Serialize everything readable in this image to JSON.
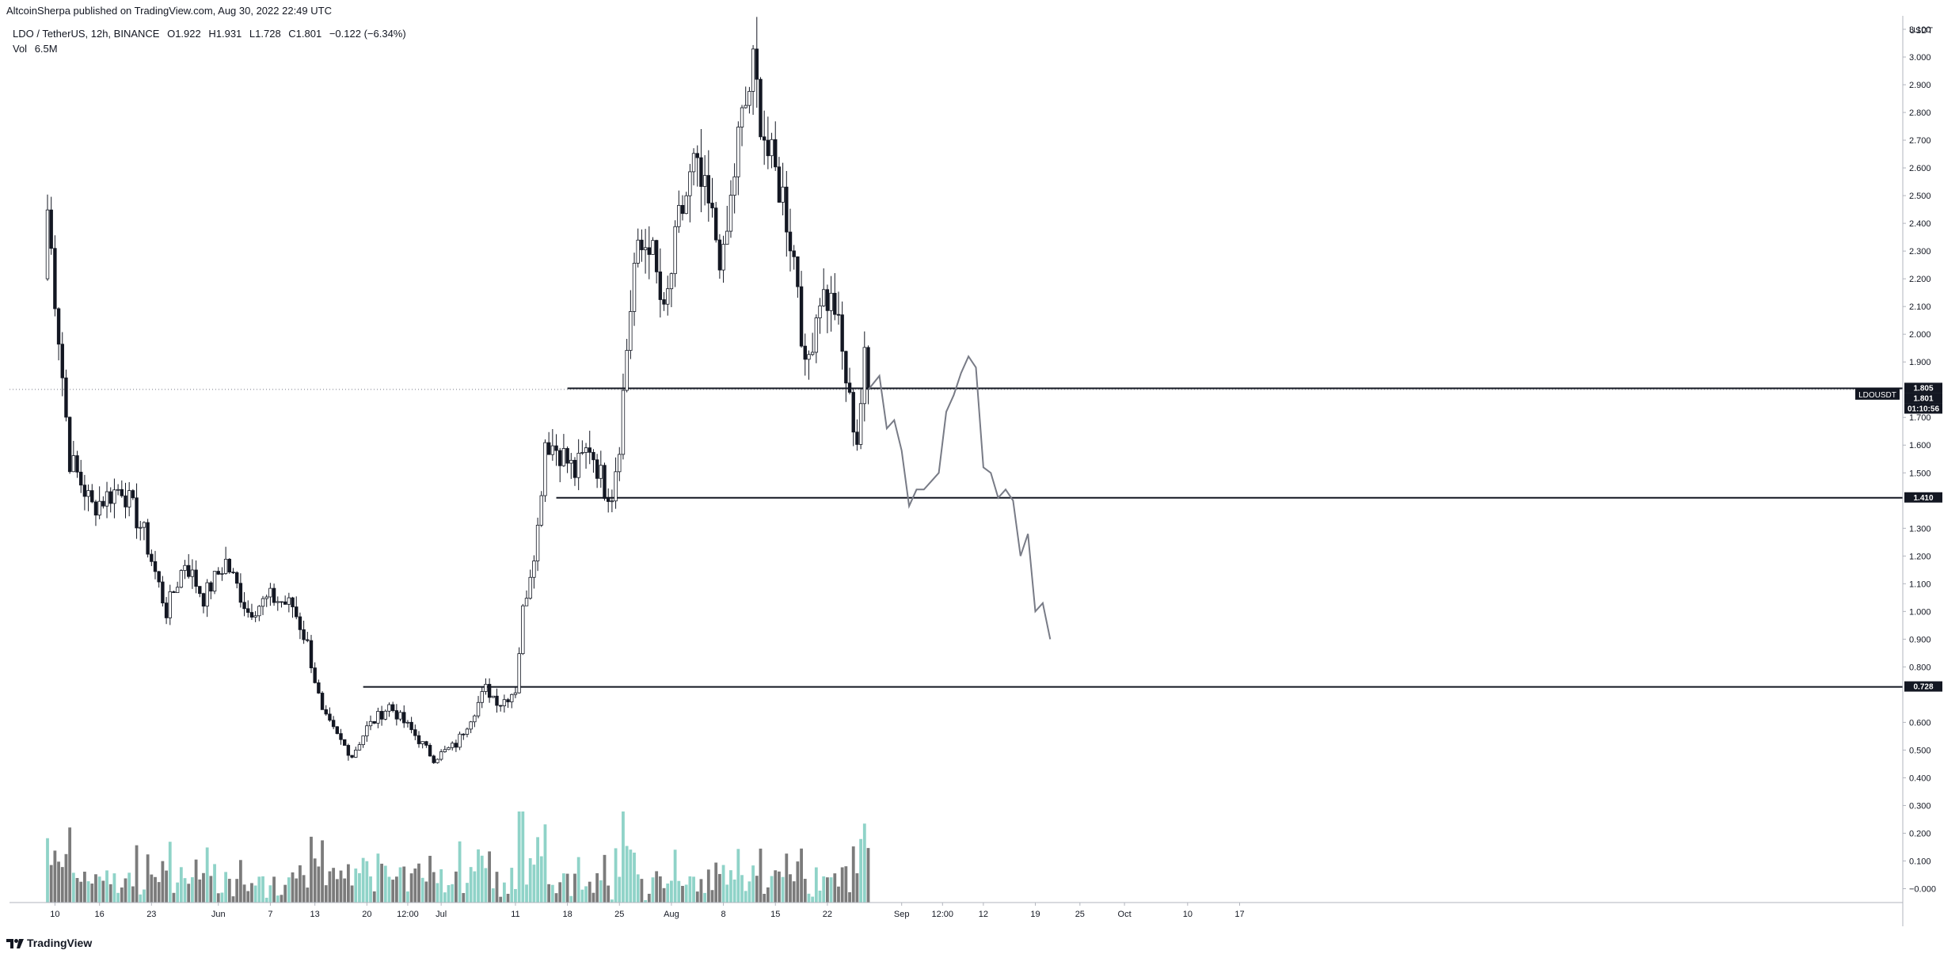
{
  "publisher": "AltcoinSherpa published on TradingView.com, Aug 30, 2022 22:49 UTC",
  "legend": {
    "symbol": "LDO / TetherUS, 12h, BINANCE",
    "open": "O1.922",
    "high": "H1.931",
    "low": "L1.728",
    "close": "C1.801",
    "change": "−0.122 (−6.34%)",
    "volume_label": "Vol",
    "volume_value": "6.5M"
  },
  "footer": {
    "brand": "TradingView"
  },
  "chart_data": {
    "type": "candlestick",
    "symbol": "LDOUSDT",
    "axis_currency": "USDT",
    "ylim": [
      -0.05,
      3.12
    ],
    "y_ticks": [
      "3.100",
      "3.000",
      "2.900",
      "2.800",
      "2.700",
      "2.600",
      "2.500",
      "2.400",
      "2.300",
      "2.200",
      "2.100",
      "2.000",
      "1.900",
      "1.700",
      "1.600",
      "1.500",
      "1.300",
      "1.200",
      "1.100",
      "1.000",
      "0.900",
      "0.800",
      "0.600",
      "0.500",
      "0.400",
      "0.300",
      "0.200",
      "0.100",
      "−0.000"
    ],
    "x_ticks": [
      {
        "label": "10",
        "bar": 2
      },
      {
        "label": "16",
        "bar": 14
      },
      {
        "label": "23",
        "bar": 28
      },
      {
        "label": "Jun",
        "bar": 46
      },
      {
        "label": "7",
        "bar": 60
      },
      {
        "label": "13",
        "bar": 72
      },
      {
        "label": "20",
        "bar": 86
      },
      {
        "label": "12:00",
        "bar": 97
      },
      {
        "label": "Jul",
        "bar": 106
      },
      {
        "label": "11",
        "bar": 126
      },
      {
        "label": "18",
        "bar": 140
      },
      {
        "label": "25",
        "bar": 154
      },
      {
        "label": "Aug",
        "bar": 168
      },
      {
        "label": "8",
        "bar": 182
      },
      {
        "label": "15",
        "bar": 196
      },
      {
        "label": "22",
        "bar": 210
      },
      {
        "label": "Sep",
        "bar": 230
      },
      {
        "label": "12:00",
        "bar": 241
      },
      {
        "label": "12",
        "bar": 252
      },
      {
        "label": "19",
        "bar": 266
      },
      {
        "label": "25",
        "bar": 278
      },
      {
        "label": "Oct",
        "bar": 290
      },
      {
        "label": "10",
        "bar": 307
      },
      {
        "label": "17",
        "bar": 321
      }
    ],
    "price_badges": [
      {
        "text": "1.805",
        "value": 1.805
      },
      {
        "text": "1.801",
        "value": 1.801
      },
      {
        "text": "01:10:56"
      },
      {
        "text": "1.410",
        "value": 1.41
      },
      {
        "text": "0.728",
        "value": 0.728
      }
    ],
    "symbol_badge": "LDOUSDT",
    "current_price": 1.801,
    "horizontal_levels": [
      {
        "value": 1.805,
        "from_bar": 140
      },
      {
        "value": 1.41,
        "from_bar": 137
      },
      {
        "value": 0.728,
        "from_bar": 85
      }
    ],
    "anchors": [
      {
        "bar": 0,
        "p": 2.45
      },
      {
        "bar": 6,
        "p": 1.55
      },
      {
        "bar": 12,
        "p": 1.38
      },
      {
        "bar": 20,
        "p": 1.45
      },
      {
        "bar": 26,
        "p": 1.28
      },
      {
        "bar": 32,
        "p": 1.0
      },
      {
        "bar": 37,
        "p": 1.18
      },
      {
        "bar": 42,
        "p": 1.05
      },
      {
        "bar": 48,
        "p": 1.18
      },
      {
        "bar": 54,
        "p": 1.0
      },
      {
        "bar": 60,
        "p": 1.05
      },
      {
        "bar": 66,
        "p": 1.02
      },
      {
        "bar": 70,
        "p": 0.88
      },
      {
        "bar": 74,
        "p": 0.63
      },
      {
        "bar": 78,
        "p": 0.55
      },
      {
        "bar": 82,
        "p": 0.48
      },
      {
        "bar": 86,
        "p": 0.58
      },
      {
        "bar": 92,
        "p": 0.66
      },
      {
        "bar": 98,
        "p": 0.57
      },
      {
        "bar": 104,
        "p": 0.47
      },
      {
        "bar": 110,
        "p": 0.52
      },
      {
        "bar": 114,
        "p": 0.62
      },
      {
        "bar": 118,
        "p": 0.72
      },
      {
        "bar": 122,
        "p": 0.67
      },
      {
        "bar": 126,
        "p": 0.72
      },
      {
        "bar": 128,
        "p": 1.0
      },
      {
        "bar": 132,
        "p": 1.3
      },
      {
        "bar": 134,
        "p": 1.62
      },
      {
        "bar": 138,
        "p": 1.58
      },
      {
        "bar": 142,
        "p": 1.5
      },
      {
        "bar": 146,
        "p": 1.6
      },
      {
        "bar": 150,
        "p": 1.45
      },
      {
        "bar": 152,
        "p": 1.43
      },
      {
        "bar": 154,
        "p": 1.62
      },
      {
        "bar": 156,
        "p": 1.95
      },
      {
        "bar": 158,
        "p": 2.25
      },
      {
        "bar": 162,
        "p": 2.35
      },
      {
        "bar": 166,
        "p": 2.05
      },
      {
        "bar": 170,
        "p": 2.4
      },
      {
        "bar": 174,
        "p": 2.6
      },
      {
        "bar": 178,
        "p": 2.45
      },
      {
        "bar": 182,
        "p": 2.25
      },
      {
        "bar": 186,
        "p": 2.7
      },
      {
        "bar": 190,
        "p": 2.95
      },
      {
        "bar": 194,
        "p": 2.65
      },
      {
        "bar": 198,
        "p": 2.5
      },
      {
        "bar": 202,
        "p": 2.2
      },
      {
        "bar": 204,
        "p": 1.85
      },
      {
        "bar": 208,
        "p": 2.15
      },
      {
        "bar": 212,
        "p": 2.1
      },
      {
        "bar": 216,
        "p": 1.75
      },
      {
        "bar": 218,
        "p": 1.62
      },
      {
        "bar": 220,
        "p": 1.9
      },
      {
        "bar": 221,
        "p": 1.801
      }
    ],
    "projection_path": [
      {
        "bar": 221,
        "p": 1.8
      },
      {
        "bar": 224,
        "p": 1.85
      },
      {
        "bar": 226,
        "p": 1.66
      },
      {
        "bar": 228,
        "p": 1.69
      },
      {
        "bar": 230,
        "p": 1.58
      },
      {
        "bar": 232,
        "p": 1.38
      },
      {
        "bar": 234,
        "p": 1.44
      },
      {
        "bar": 236,
        "p": 1.44
      },
      {
        "bar": 238,
        "p": 1.47
      },
      {
        "bar": 240,
        "p": 1.5
      },
      {
        "bar": 242,
        "p": 1.72
      },
      {
        "bar": 244,
        "p": 1.78
      },
      {
        "bar": 246,
        "p": 1.86
      },
      {
        "bar": 248,
        "p": 1.92
      },
      {
        "bar": 250,
        "p": 1.88
      },
      {
        "bar": 252,
        "p": 1.52
      },
      {
        "bar": 254,
        "p": 1.5
      },
      {
        "bar": 256,
        "p": 1.41
      },
      {
        "bar": 258,
        "p": 1.44
      },
      {
        "bar": 260,
        "p": 1.4
      },
      {
        "bar": 262,
        "p": 1.2
      },
      {
        "bar": 264,
        "p": 1.28
      },
      {
        "bar": 266,
        "p": 1.0
      },
      {
        "bar": 268,
        "p": 1.03
      },
      {
        "bar": 270,
        "p": 0.9
      }
    ],
    "volume_ratio_range": [
      0,
      1
    ],
    "grid": false
  }
}
